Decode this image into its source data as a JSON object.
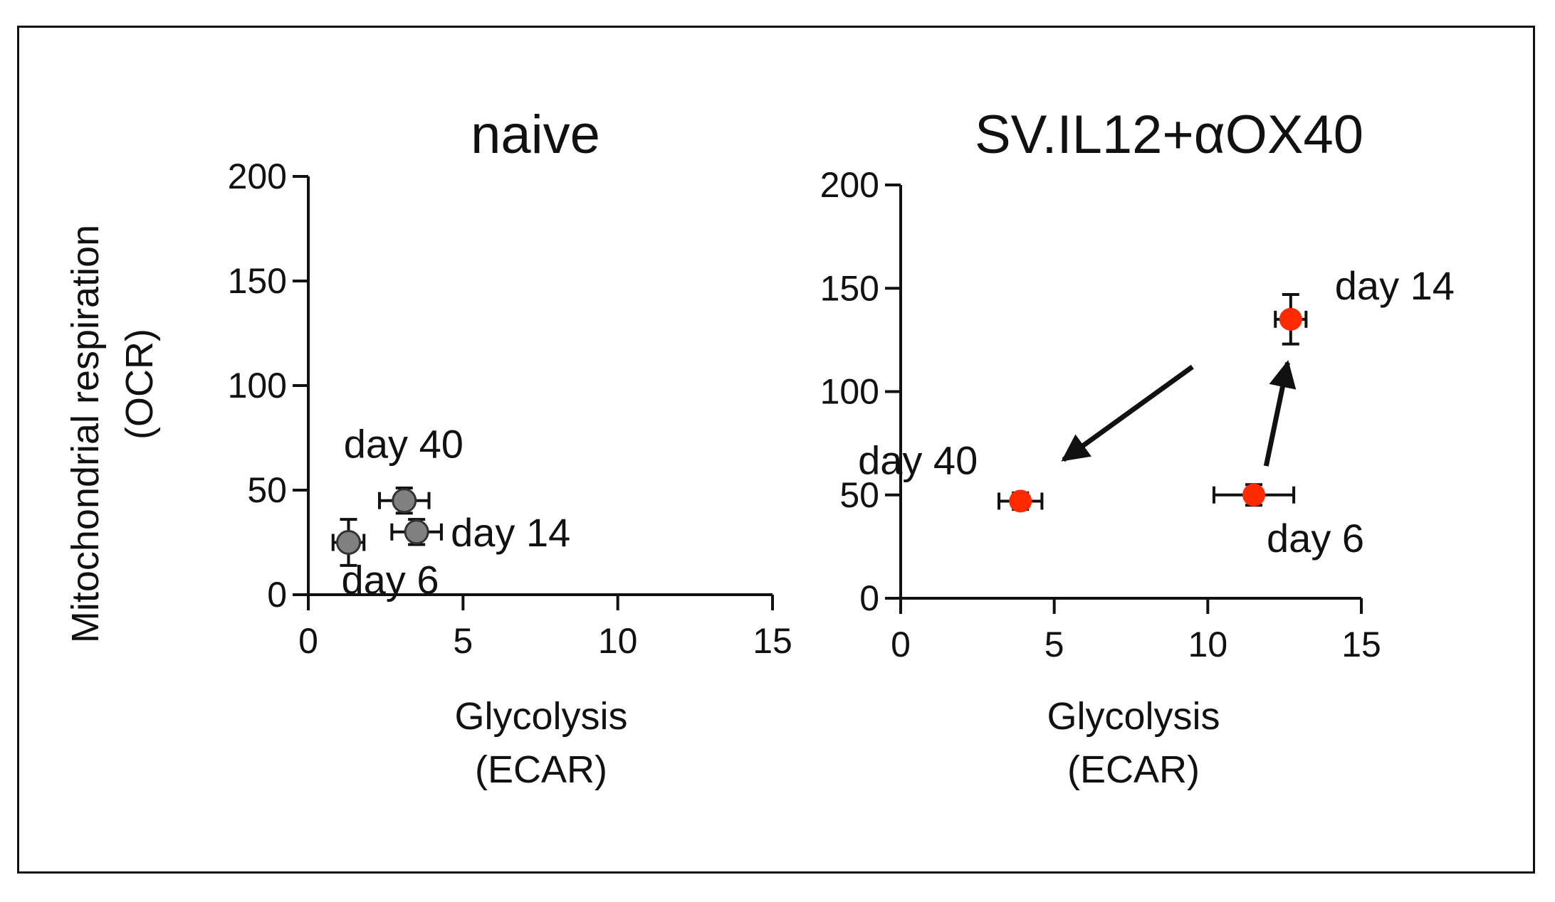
{
  "figure": {
    "ylabel_line1": "Mitochondrial respiration",
    "ylabel_line2": "(OCR)"
  },
  "chart_data": [
    {
      "type": "scatter",
      "title": "naive",
      "xlabel_line1": "Glycolysis",
      "xlabel_line2": "(ECAR)",
      "xlim": [
        0,
        15
      ],
      "ylim": [
        0,
        200
      ],
      "xticks": [
        "0",
        "5",
        "10",
        "15"
      ],
      "yticks": [
        "0",
        "50",
        "100",
        "150",
        "200"
      ],
      "marker_color": "#808080",
      "points": [
        {
          "label": "day 6",
          "x": 1.3,
          "y": 25,
          "xerr": 0.5,
          "yerr": 11
        },
        {
          "label": "day 14",
          "x": 3.5,
          "y": 30,
          "xerr": 0.8,
          "yerr": 6
        },
        {
          "label": "day 40",
          "x": 3.1,
          "y": 45,
          "xerr": 0.8,
          "yerr": 6
        }
      ],
      "arrows": []
    },
    {
      "type": "scatter",
      "title": "SV.IL12+αOX40",
      "xlabel_line1": "Glycolysis",
      "xlabel_line2": "(ECAR)",
      "xlim": [
        0,
        15
      ],
      "ylim": [
        0,
        200
      ],
      "xticks": [
        "0",
        "5",
        "10",
        "15"
      ],
      "yticks": [
        "0",
        "50",
        "100",
        "150",
        "200"
      ],
      "marker_color": "#ff2a00",
      "points": [
        {
          "label": "day 6",
          "x": 11.5,
          "y": 50,
          "xerr": 1.3,
          "yerr": 5
        },
        {
          "label": "day 14",
          "x": 12.7,
          "y": 135,
          "xerr": 0.5,
          "yerr": 12
        },
        {
          "label": "day 40",
          "x": 3.9,
          "y": 47,
          "xerr": 0.7,
          "yerr": 4
        }
      ],
      "arrows": [
        {
          "from": [
            11.9,
            64
          ],
          "to": [
            12.6,
            114
          ]
        },
        {
          "from": [
            9.5,
            112
          ],
          "to": [
            5.3,
            67
          ]
        }
      ]
    }
  ]
}
